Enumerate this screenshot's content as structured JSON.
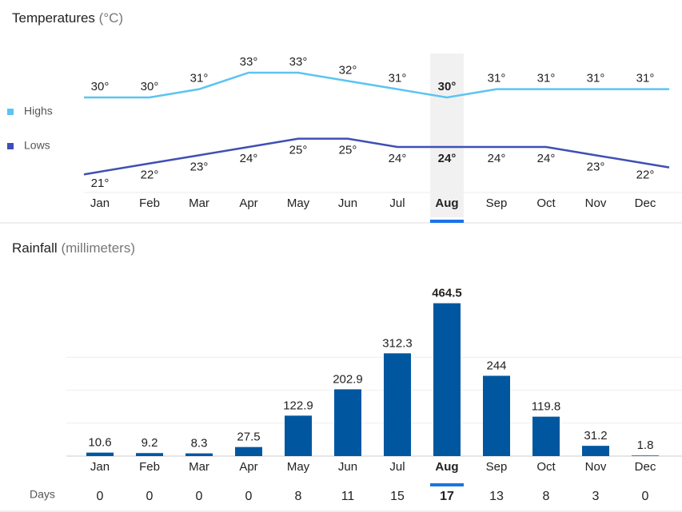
{
  "chart_data": [
    {
      "type": "line",
      "title": "Temperatures",
      "unit": "(°C)",
      "categories": [
        "Jan",
        "Feb",
        "Mar",
        "Apr",
        "May",
        "Jun",
        "Jul",
        "Aug",
        "Sep",
        "Oct",
        "Nov",
        "Dec"
      ],
      "selected_index": 7,
      "series": [
        {
          "name": "Highs",
          "color": "#5bc4f1",
          "values": [
            30,
            30,
            31,
            33,
            33,
            32,
            31,
            30,
            31,
            31,
            31,
            31
          ],
          "value_labels": [
            "30°",
            "30°",
            "31°",
            "33°",
            "33°",
            "32°",
            "31°",
            "30°",
            "31°",
            "31°",
            "31°",
            "31°"
          ]
        },
        {
          "name": "Lows",
          "color": "#3f4fb5",
          "values": [
            21,
            22,
            23,
            24,
            25,
            25,
            24,
            24,
            24,
            24,
            23,
            22
          ],
          "value_labels": [
            "21°",
            "22°",
            "23°",
            "24°",
            "25°",
            "25°",
            "24°",
            "24°",
            "24°",
            "24°",
            "23°",
            "22°"
          ]
        }
      ]
    },
    {
      "type": "bar",
      "title": "Rainfall",
      "unit": "(millimeters)",
      "categories": [
        "Jan",
        "Feb",
        "Mar",
        "Apr",
        "May",
        "Jun",
        "Jul",
        "Aug",
        "Sep",
        "Oct",
        "Nov",
        "Dec"
      ],
      "selected_index": 7,
      "values": [
        10.6,
        9.2,
        8.3,
        27.5,
        122.9,
        202.9,
        312.3,
        464.5,
        244,
        119.8,
        31.2,
        1.8
      ],
      "color": "#0057a0",
      "ylim": [
        0,
        500
      ],
      "yticks": [
        0,
        100,
        200,
        300
      ],
      "grid": true,
      "days_label": "Days",
      "days": [
        0,
        0,
        0,
        0,
        8,
        11,
        15,
        17,
        13,
        8,
        3,
        0
      ]
    }
  ]
}
